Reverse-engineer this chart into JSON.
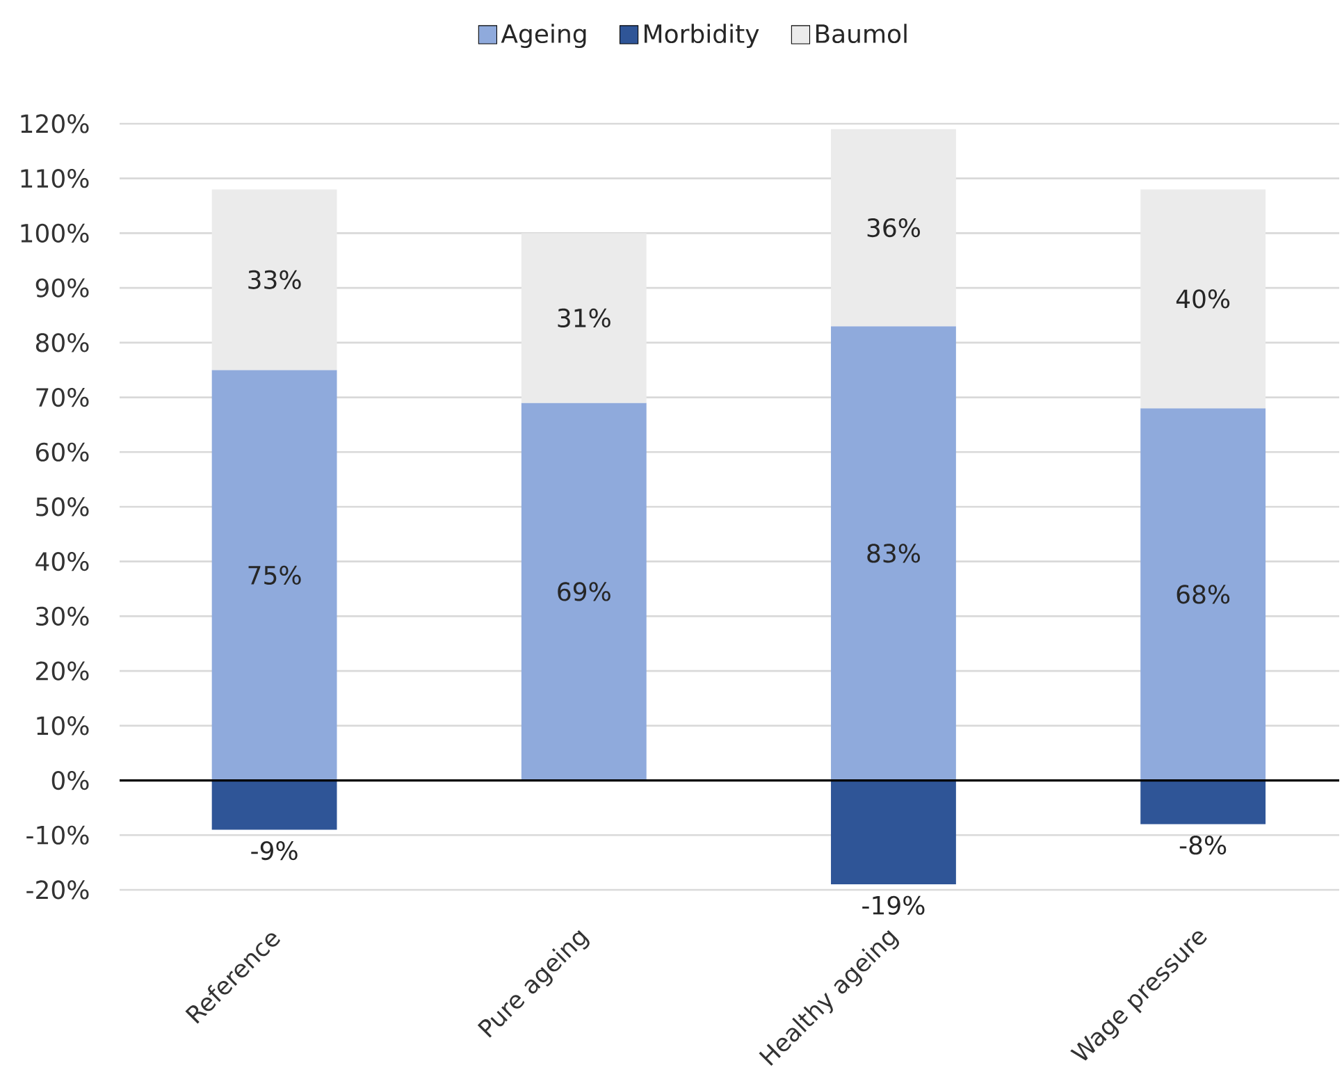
{
  "chart_data": {
    "type": "bar",
    "stacked": true,
    "categories": [
      "Reference",
      "Pure ageing",
      "Healthy ageing",
      "Wage pressure"
    ],
    "series": [
      {
        "name": "Ageing",
        "color": "#8faadc",
        "values": [
          75,
          69,
          83,
          68
        ],
        "value_labels": [
          "75%",
          "69%",
          "83%",
          "68%"
        ]
      },
      {
        "name": "Morbidity",
        "color": "#2f5597",
        "values": [
          -9,
          null,
          -19,
          -8
        ],
        "value_labels": [
          "-9%",
          null,
          "-19%",
          "-8%"
        ]
      },
      {
        "name": "Baumol",
        "color": "#ebebeb",
        "values": [
          33,
          31,
          36,
          40
        ],
        "value_labels": [
          "33%",
          "31%",
          "36%",
          "40%"
        ]
      }
    ],
    "ylim": [
      -20,
      120
    ],
    "yticks": [
      {
        "value": -20,
        "label": "-20%"
      },
      {
        "value": -10,
        "label": "-10%"
      },
      {
        "value": 0,
        "label": "0%"
      },
      {
        "value": 10,
        "label": "10%"
      },
      {
        "value": 20,
        "label": "20%"
      },
      {
        "value": 30,
        "label": "30%"
      },
      {
        "value": 40,
        "label": "40%"
      },
      {
        "value": 50,
        "label": "50%"
      },
      {
        "value": 60,
        "label": "60%"
      },
      {
        "value": 70,
        "label": "70%"
      },
      {
        "value": 80,
        "label": "80%"
      },
      {
        "value": 90,
        "label": "90%"
      },
      {
        "value": 100,
        "label": "100%"
      },
      {
        "value": 110,
        "label": "110%"
      },
      {
        "value": 120,
        "label": "120%"
      }
    ],
    "grid": "y",
    "legend": "top"
  }
}
